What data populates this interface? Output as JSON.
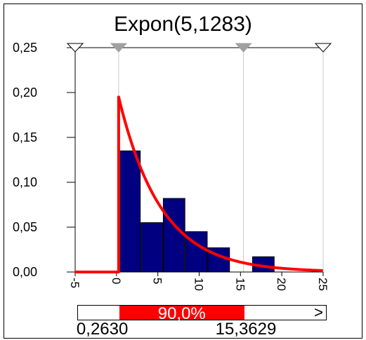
{
  "chart_data": {
    "type": "bar",
    "title": "Expon(5,1283)",
    "xlim": [
      -5,
      25
    ],
    "ylim": [
      0,
      0.25
    ],
    "yticks": [
      "0,00",
      "0,05",
      "0,10",
      "0,15",
      "0,20",
      "0,25"
    ],
    "xticks": [
      "-5",
      "0",
      "5",
      "10",
      "15",
      "20",
      "25"
    ],
    "histogram": {
      "bin_width": 2.7,
      "bin_starts": [
        0.26,
        2.96,
        5.66,
        8.36,
        11.06,
        13.76,
        16.46
      ],
      "values": [
        0.135,
        0.055,
        0.082,
        0.045,
        0.027,
        0.0,
        0.017
      ]
    },
    "curve": {
      "name": "Expon",
      "mean": 5.1283,
      "x_start": 0.26
    },
    "markers": [
      -5,
      0.263,
      15.3629,
      25
    ],
    "delimiter_values": [
      0.263,
      15.3629
    ],
    "colors": {
      "bars": "#000080",
      "curve": "#ff0000",
      "band": "#ff0000"
    }
  },
  "band": {
    "percent_label": "90,0%",
    "left_value": "0,2630",
    "right_value": "15,3629",
    "compare_glyph": ">",
    "left_fraction": 0.0,
    "center_fraction": 0.9,
    "right_fraction": 0.1
  }
}
